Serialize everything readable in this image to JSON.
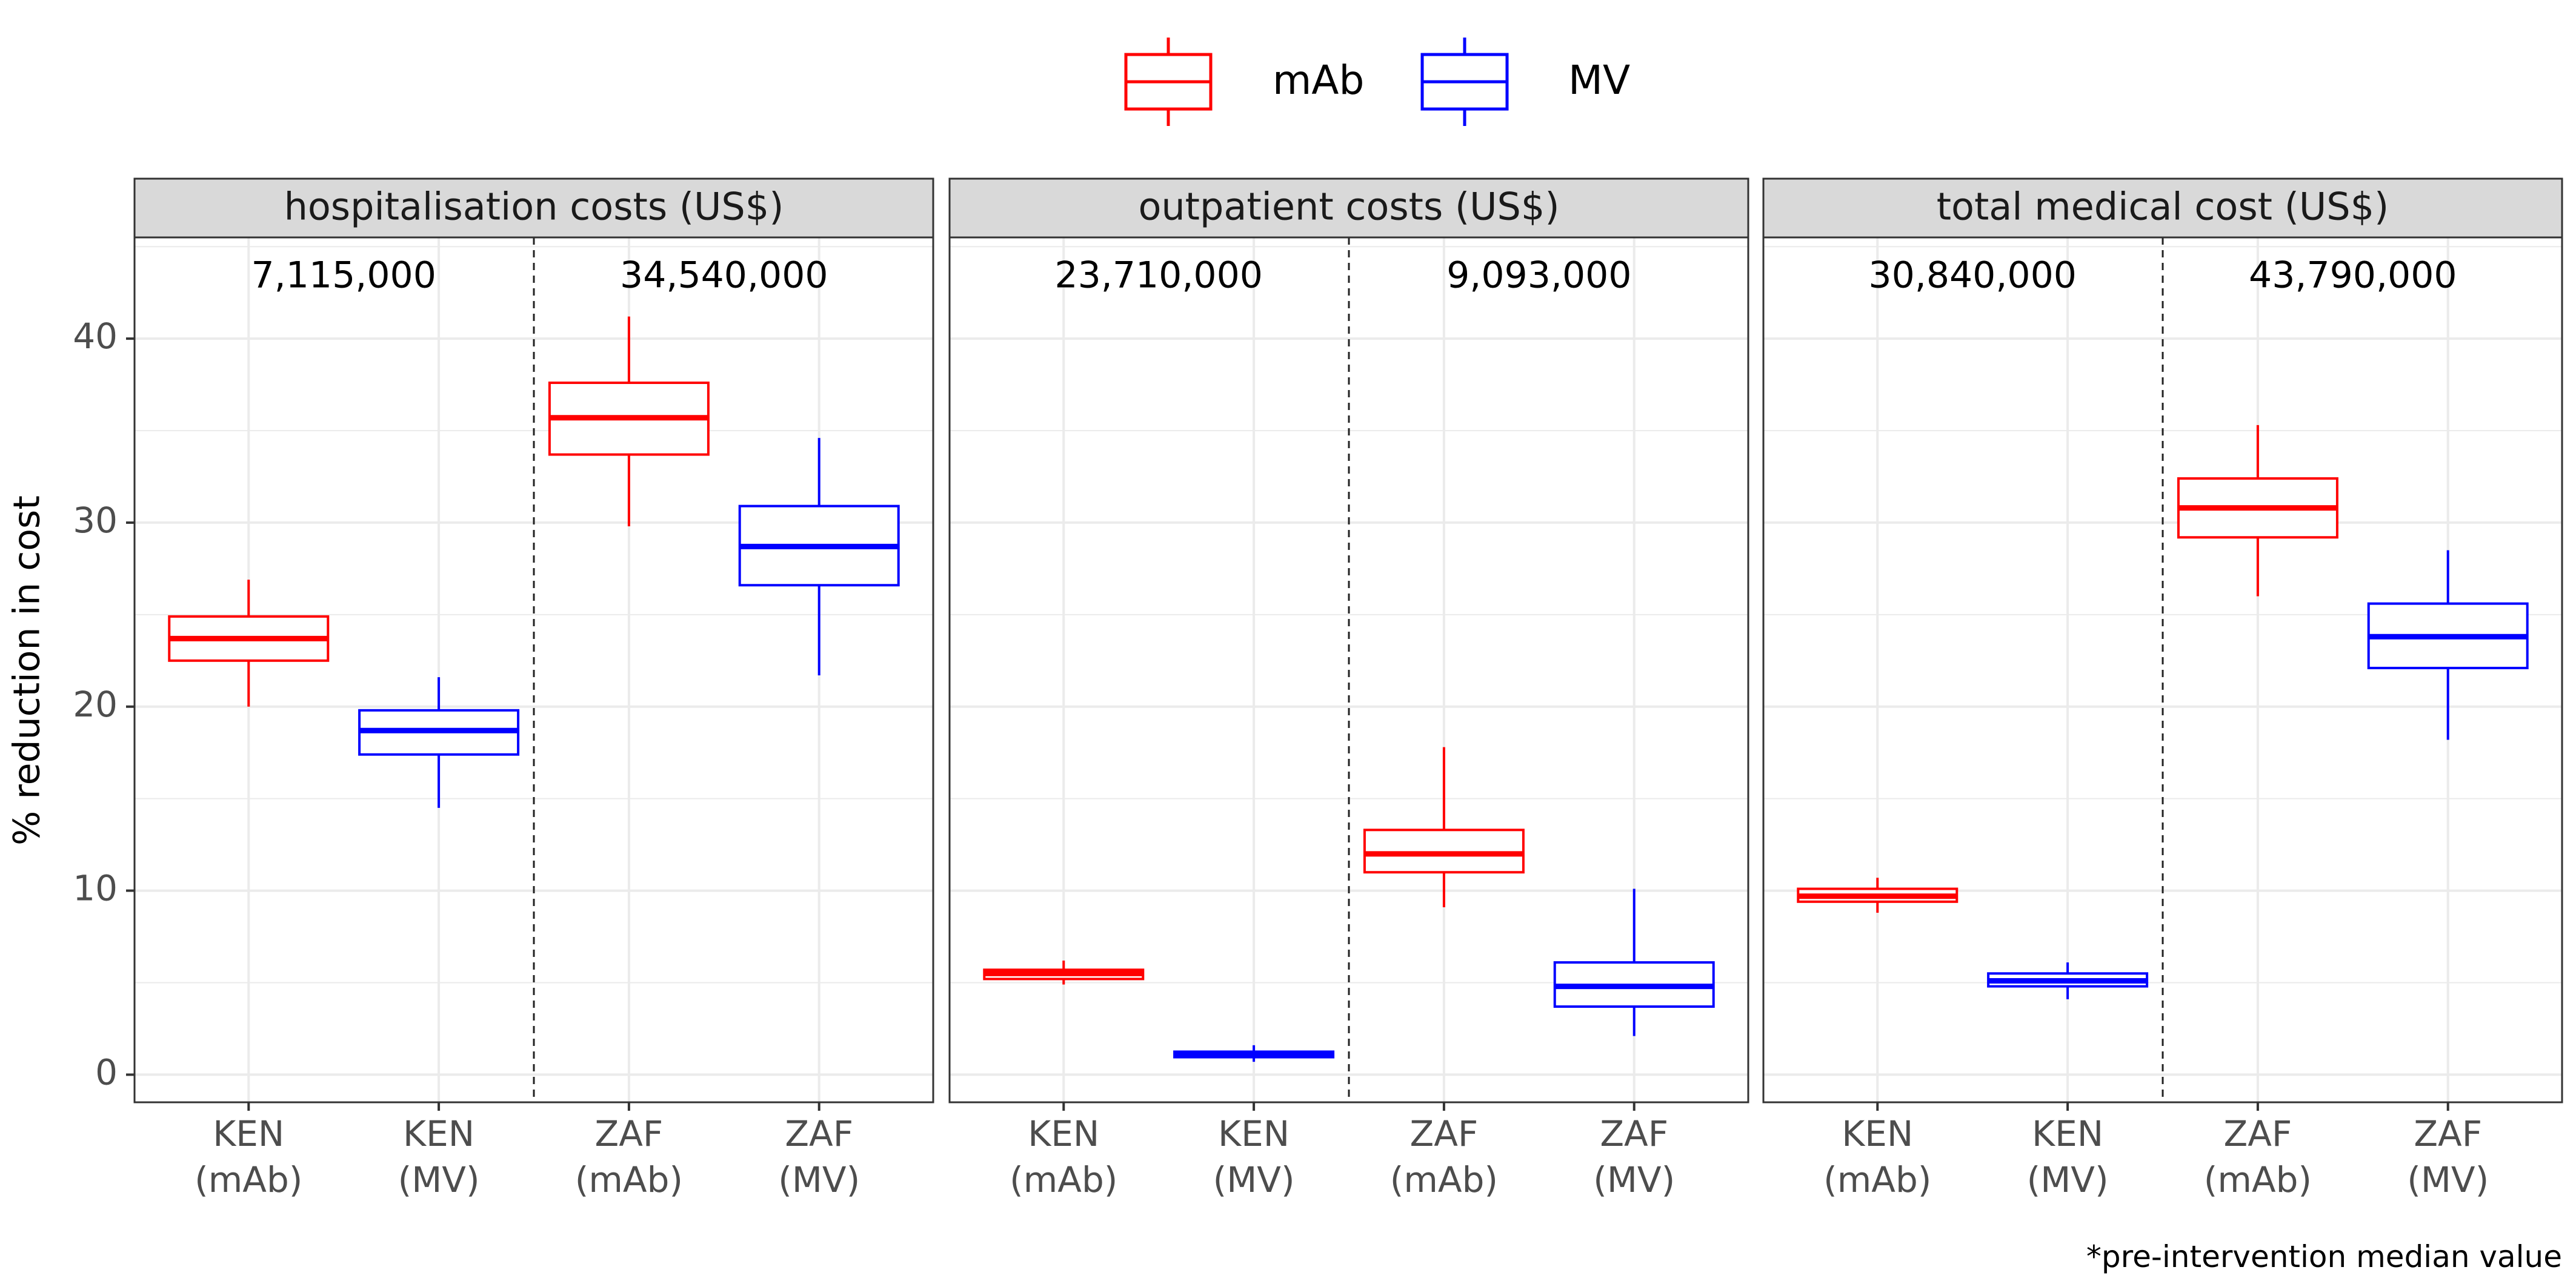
{
  "chart_data": {
    "type": "box",
    "ylabel": "% reduction in cost",
    "ylim": [
      -1.5,
      45.5
    ],
    "yticks": [
      0,
      10,
      20,
      30,
      40
    ],
    "grid": true,
    "legend": {
      "placement": "top",
      "entries": [
        {
          "name": "mAb",
          "color": "#ff0000"
        },
        {
          "name": "MV",
          "color": "#0000ff"
        }
      ]
    },
    "caption": "*pre-intervention median value",
    "categories": [
      {
        "label": "KEN\n(mAb)",
        "group": "mAb"
      },
      {
        "label": "KEN\n(MV)",
        "group": "MV"
      },
      {
        "label": "ZAF\n(mAb)",
        "group": "mAb"
      },
      {
        "label": "ZAF\n(MV)",
        "group": "MV"
      }
    ],
    "panels": [
      {
        "title": "hospitalisation costs (US$)",
        "annotations": [
          "7,115,000",
          "34,540,000"
        ],
        "boxes": [
          {
            "min": 20.0,
            "q1": 22.5,
            "median": 23.7,
            "q3": 24.9,
            "max": 26.9
          },
          {
            "min": 14.5,
            "q1": 17.4,
            "median": 18.7,
            "q3": 19.8,
            "max": 21.6
          },
          {
            "min": 29.8,
            "q1": 33.7,
            "median": 35.7,
            "q3": 37.6,
            "max": 41.2
          },
          {
            "min": 21.7,
            "q1": 26.6,
            "median": 28.7,
            "q3": 30.9,
            "max": 34.6
          }
        ]
      },
      {
        "title": "outpatient costs (US$)",
        "annotations": [
          "23,710,000",
          "9,093,000"
        ],
        "boxes": [
          {
            "min": 4.9,
            "q1": 5.2,
            "median": 5.5,
            "q3": 5.7,
            "max": 6.2
          },
          {
            "min": 0.7,
            "q1": 0.95,
            "median": 1.1,
            "q3": 1.25,
            "max": 1.6
          },
          {
            "min": 9.1,
            "q1": 11.0,
            "median": 12.0,
            "q3": 13.3,
            "max": 17.8
          },
          {
            "min": 2.1,
            "q1": 3.7,
            "median": 4.8,
            "q3": 6.1,
            "max": 10.1
          }
        ]
      },
      {
        "title": "total medical cost (US$)",
        "annotations": [
          "30,840,000",
          "43,790,000"
        ],
        "boxes": [
          {
            "min": 8.8,
            "q1": 9.4,
            "median": 9.7,
            "q3": 10.1,
            "max": 10.7
          },
          {
            "min": 4.1,
            "q1": 4.8,
            "median": 5.1,
            "q3": 5.5,
            "max": 6.1
          },
          {
            "min": 26.0,
            "q1": 29.2,
            "median": 30.8,
            "q3": 32.4,
            "max": 35.3
          },
          {
            "min": 18.2,
            "q1": 22.1,
            "median": 23.8,
            "q3": 25.6,
            "max": 28.5
          }
        ]
      }
    ]
  }
}
